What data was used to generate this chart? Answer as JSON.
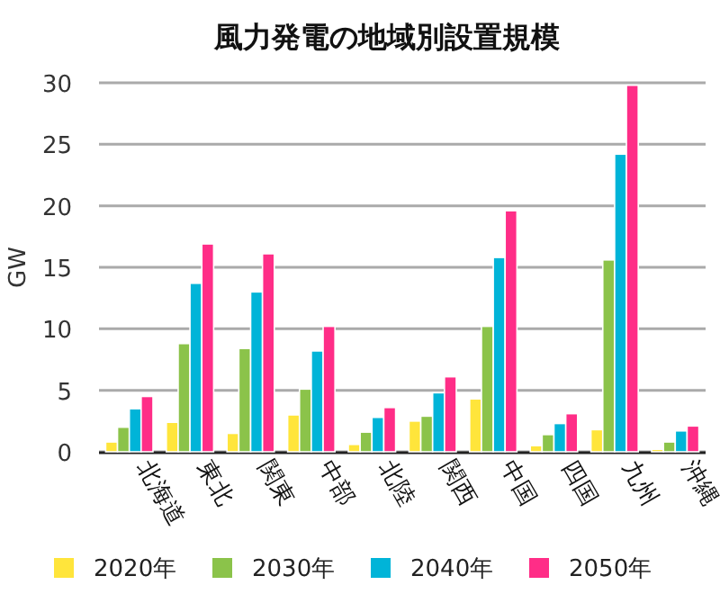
{
  "chart_data": {
    "type": "bar",
    "title": "風力発電の地域別設置規模",
    "ylabel": "GW",
    "categories": [
      "北海道",
      "東北",
      "関東",
      "中部",
      "北陸",
      "関西",
      "中国",
      "四国",
      "九州",
      "沖縄"
    ],
    "series": [
      {
        "name": "2020年",
        "color": "#ffe53b",
        "values": [
          0.8,
          2.4,
          1.5,
          3.0,
          0.6,
          2.5,
          4.3,
          0.5,
          1.8,
          0.2
        ]
      },
      {
        "name": "2030年",
        "color": "#8bc34a",
        "values": [
          2.0,
          8.8,
          8.4,
          5.1,
          1.6,
          2.9,
          10.2,
          1.4,
          15.6,
          0.8
        ]
      },
      {
        "name": "2040年",
        "color": "#00b4d8",
        "values": [
          3.5,
          13.7,
          13.0,
          8.2,
          2.8,
          4.8,
          15.8,
          2.3,
          24.2,
          1.7
        ]
      },
      {
        "name": "2050年",
        "color": "#ff2d87",
        "values": [
          4.5,
          16.9,
          16.1,
          10.2,
          3.6,
          6.1,
          19.6,
          3.1,
          29.8,
          2.1
        ]
      }
    ],
    "ylim": [
      0,
      30
    ],
    "yticks": [
      0,
      5,
      10,
      15,
      20,
      25,
      30
    ],
    "grid": "y",
    "legend": "bottom"
  }
}
